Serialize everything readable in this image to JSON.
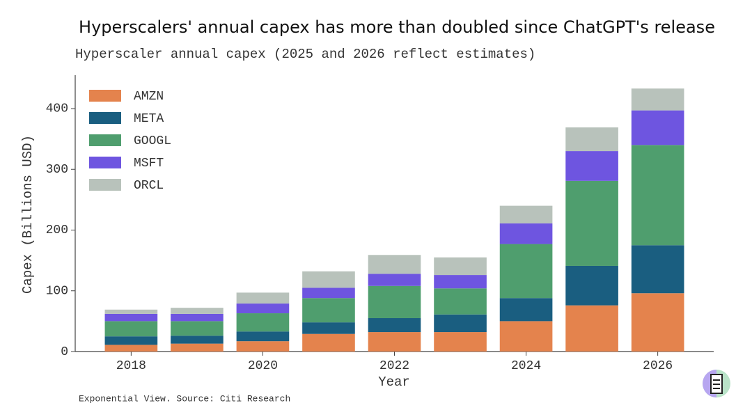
{
  "chart_data": {
    "type": "stacked_bar",
    "title": "Hyperscalers' annual capex has more than doubled since ChatGPT's release",
    "subtitle": "Hyperscaler annual capex (2025 and 2026 reflect estimates)",
    "x_label": "Year",
    "y_label": "Capex (Billions USD)",
    "source": "Exponential View. Source: Citi Research",
    "x": [
      2018,
      2019,
      2020,
      2021,
      2022,
      2023,
      2024,
      2025,
      2026
    ],
    "series": [
      {
        "name": "AMZN",
        "color": "#e4834d",
        "values": [
          11,
          13,
          17,
          29,
          32,
          32,
          50,
          76,
          96
        ]
      },
      {
        "name": "META",
        "color": "#1a5e80",
        "values": [
          14,
          13,
          16,
          19,
          23,
          29,
          38,
          65,
          79
        ]
      },
      {
        "name": "GOOGL",
        "color": "#4f9e6e",
        "values": [
          25,
          24,
          30,
          40,
          53,
          43,
          89,
          140,
          165
        ]
      },
      {
        "name": "MSFT",
        "color": "#6e55e0",
        "values": [
          12,
          12,
          16,
          17,
          20,
          22,
          34,
          49,
          57
        ]
      },
      {
        "name": "ORCL",
        "color": "#b8c2bb",
        "values": [
          7,
          10,
          18,
          27,
          31,
          29,
          29,
          39,
          36
        ]
      }
    ],
    "xlim": [
      2017.15,
      2026.85
    ],
    "xticks": [
      2018,
      2020,
      2022,
      2024,
      2026
    ],
    "ylim": [
      0,
      455
    ],
    "yticks": [
      0,
      100,
      200,
      300,
      400
    ],
    "legend": "upper left"
  }
}
